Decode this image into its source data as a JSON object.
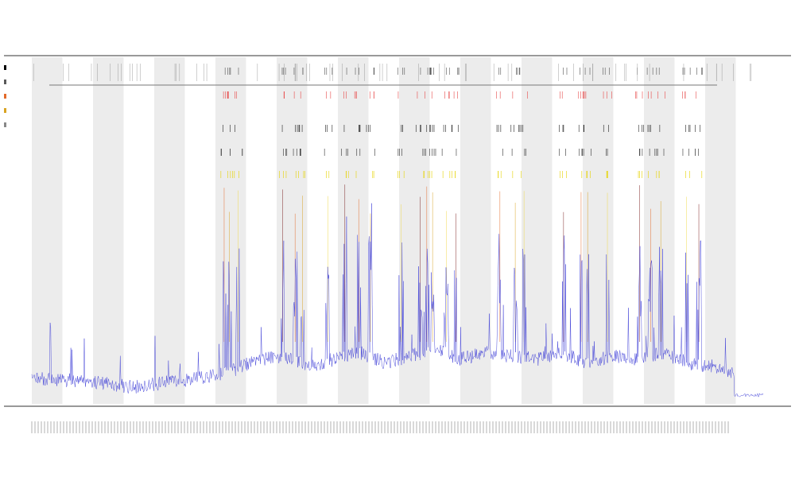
{
  "chart_data": {
    "type": "line",
    "title": "",
    "subtitle_1": "",
    "subtitle_2": "",
    "xlabel": "",
    "ylabel": "",
    "n_points": 1200,
    "series": [
      {
        "name": "",
        "color": "#3a3ad6"
      }
    ],
    "baseline_profile": [
      0.07,
      0.06,
      0.06,
      0.05,
      0.04,
      0.05,
      0.06,
      0.07,
      0.09,
      0.12,
      0.13,
      0.1,
      0.12,
      0.14,
      0.11,
      0.13,
      0.15,
      0.12,
      0.14,
      0.13,
      0.12,
      0.14,
      0.11,
      0.13,
      0.12,
      0.14,
      0.11,
      0.1,
      0.08,
      0.03
    ],
    "spike_positions": [
      0.263,
      0.27,
      0.282,
      0.343,
      0.36,
      0.37,
      0.405,
      0.428,
      0.447,
      0.463,
      0.505,
      0.531,
      0.54,
      0.548,
      0.567,
      0.58,
      0.64,
      0.661,
      0.673,
      0.727,
      0.751,
      0.76,
      0.787,
      0.831,
      0.846,
      0.86,
      0.895,
      0.912
    ],
    "spike_colors": [
      "#e36a2a",
      "#d9a322",
      "#f0d94a",
      "#7a1f1f"
    ],
    "band_color": "#ececec",
    "band_count": 12,
    "legend_markers": [
      "#000000",
      "#5a5a5a",
      "#e36a2a",
      "#d9a322",
      "#888888"
    ],
    "top_event_rows": [
      {
        "color": "#555555"
      },
      {
        "color": "#e74a4a"
      },
      {
        "color": "#222222"
      },
      {
        "color": "#333333"
      },
      {
        "color": "#e6d300"
      }
    ]
  }
}
